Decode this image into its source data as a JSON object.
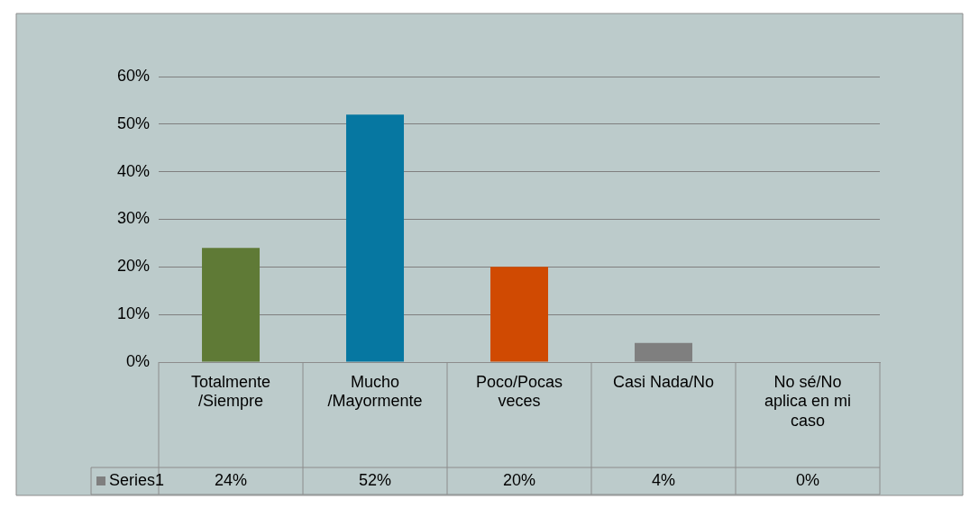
{
  "chart_data": {
    "type": "bar",
    "categories": [
      "Totalmente/Siempre",
      "Mucho/Mayormente",
      "Poco/Pocas veces",
      "Casi Nada/No",
      "No sé/No aplica en mi caso"
    ],
    "series": [
      {
        "name": "Series1",
        "color": "#7f7f7f",
        "colors": [
          "#5f7a36",
          "#0677a1",
          "#d04a02",
          "#7f7f7f",
          "#595959"
        ],
        "values": [
          24,
          52,
          20,
          4,
          0
        ],
        "value_labels": [
          "24%",
          "52%",
          "20%",
          "4%",
          "0%"
        ]
      }
    ],
    "ylim": [
      0,
      60
    ],
    "yticks": [
      {
        "value": 0,
        "label": "0%"
      },
      {
        "value": 10,
        "label": "10%"
      },
      {
        "value": 20,
        "label": "20%"
      },
      {
        "value": 30,
        "label": "30%"
      },
      {
        "value": 40,
        "label": "40%"
      },
      {
        "value": 50,
        "label": "50%"
      },
      {
        "value": 60,
        "label": "60%"
      }
    ],
    "grid": "y",
    "legend": "bottom"
  }
}
